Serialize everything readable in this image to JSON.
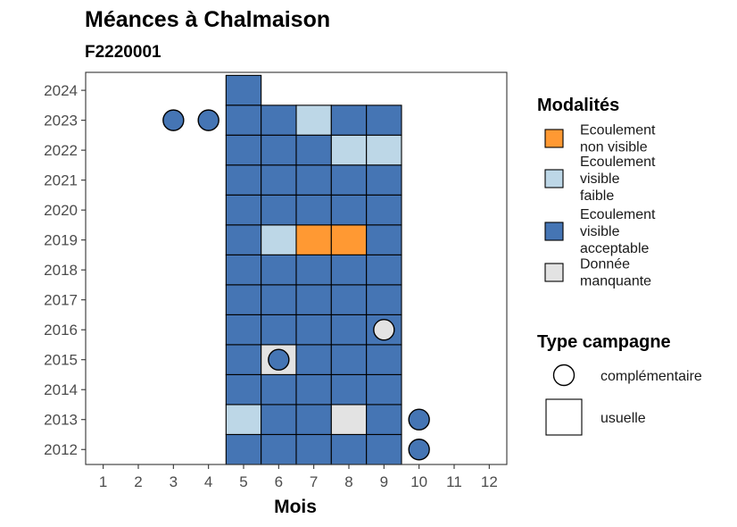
{
  "chart_data": {
    "type": "heatmap",
    "title": "Méances à Chalmaison",
    "subtitle": "F2220001",
    "xlabel": "Mois",
    "ylabel": "",
    "x_ticks": [
      1,
      2,
      3,
      4,
      5,
      6,
      7,
      8,
      9,
      10,
      11,
      12
    ],
    "y_ticks": [
      2012,
      2013,
      2014,
      2015,
      2016,
      2017,
      2018,
      2019,
      2020,
      2021,
      2022,
      2023,
      2024
    ],
    "xlim": [
      0.5,
      12.5
    ],
    "ylim": [
      2011.5,
      2024.6
    ],
    "grid": false,
    "legend_position": "right",
    "modalites_legend": {
      "title": "Modalités",
      "items": [
        {
          "key": "ev_nv",
          "lines": [
            "Ecoulement",
            "non visible"
          ],
          "color": "#FF9933"
        },
        {
          "key": "ev_faible",
          "lines": [
            "Ecoulement",
            "visible",
            "faible"
          ],
          "color": "#BDD7E7"
        },
        {
          "key": "ev_acc",
          "lines": [
            "Ecoulement",
            "visible",
            "acceptable"
          ],
          "color": "#4575B4"
        },
        {
          "key": "na",
          "lines": [
            "Donnée",
            "manquante"
          ],
          "color": "#E3E3E3"
        }
      ]
    },
    "campagne_legend": {
      "title": "Type campagne",
      "items": [
        {
          "key": "complementaire",
          "label": "complémentaire",
          "shape": "circle"
        },
        {
          "key": "usuelle",
          "label": "usuelle",
          "shape": "square"
        }
      ]
    },
    "usuelle": [
      {
        "year": 2024,
        "months": [
          5
        ],
        "values": [
          "ev_acc"
        ]
      },
      {
        "year": 2023,
        "months": [
          5,
          6,
          7,
          8,
          9
        ],
        "values": [
          "ev_acc",
          "ev_acc",
          "ev_faible",
          "ev_acc",
          "ev_acc"
        ]
      },
      {
        "year": 2022,
        "months": [
          5,
          6,
          7,
          8,
          9
        ],
        "values": [
          "ev_acc",
          "ev_acc",
          "ev_acc",
          "ev_faible",
          "ev_faible"
        ]
      },
      {
        "year": 2021,
        "months": [
          5,
          6,
          7,
          8,
          9
        ],
        "values": [
          "ev_acc",
          "ev_acc",
          "ev_acc",
          "ev_acc",
          "ev_acc"
        ]
      },
      {
        "year": 2020,
        "months": [
          5,
          6,
          7,
          8,
          9
        ],
        "values": [
          "ev_acc",
          "ev_acc",
          "ev_acc",
          "ev_acc",
          "ev_acc"
        ]
      },
      {
        "year": 2019,
        "months": [
          5,
          6,
          7,
          8,
          9
        ],
        "values": [
          "ev_acc",
          "ev_faible",
          "ev_nv",
          "ev_nv",
          "ev_acc"
        ]
      },
      {
        "year": 2018,
        "months": [
          5,
          6,
          7,
          8,
          9
        ],
        "values": [
          "ev_acc",
          "ev_acc",
          "ev_acc",
          "ev_acc",
          "ev_acc"
        ]
      },
      {
        "year": 2017,
        "months": [
          5,
          6,
          7,
          8,
          9
        ],
        "values": [
          "ev_acc",
          "ev_acc",
          "ev_acc",
          "ev_acc",
          "ev_acc"
        ]
      },
      {
        "year": 2016,
        "months": [
          5,
          6,
          7,
          8,
          9
        ],
        "values": [
          "ev_acc",
          "ev_acc",
          "ev_acc",
          "ev_acc",
          "ev_acc"
        ]
      },
      {
        "year": 2015,
        "months": [
          5,
          6,
          7,
          8,
          9
        ],
        "values": [
          "ev_acc",
          "na",
          "ev_acc",
          "ev_acc",
          "ev_acc"
        ]
      },
      {
        "year": 2014,
        "months": [
          5,
          6,
          7,
          8,
          9
        ],
        "values": [
          "ev_acc",
          "ev_acc",
          "ev_acc",
          "ev_acc",
          "ev_acc"
        ]
      },
      {
        "year": 2013,
        "months": [
          5,
          6,
          7,
          8,
          9
        ],
        "values": [
          "ev_faible",
          "ev_acc",
          "ev_acc",
          "na",
          "ev_acc"
        ]
      },
      {
        "year": 2012,
        "months": [
          5,
          6,
          7,
          8,
          9
        ],
        "values": [
          "ev_acc",
          "ev_acc",
          "ev_acc",
          "ev_acc",
          "ev_acc"
        ]
      }
    ],
    "complementaire": [
      {
        "year": 2023,
        "month": 3,
        "value": "ev_acc"
      },
      {
        "year": 2023,
        "month": 4,
        "value": "ev_acc"
      },
      {
        "year": 2016,
        "month": 9,
        "value": "na"
      },
      {
        "year": 2015,
        "month": 6,
        "value": "ev_acc"
      },
      {
        "year": 2013,
        "month": 10,
        "value": "ev_acc"
      },
      {
        "year": 2012,
        "month": 10,
        "value": "ev_acc"
      }
    ]
  }
}
